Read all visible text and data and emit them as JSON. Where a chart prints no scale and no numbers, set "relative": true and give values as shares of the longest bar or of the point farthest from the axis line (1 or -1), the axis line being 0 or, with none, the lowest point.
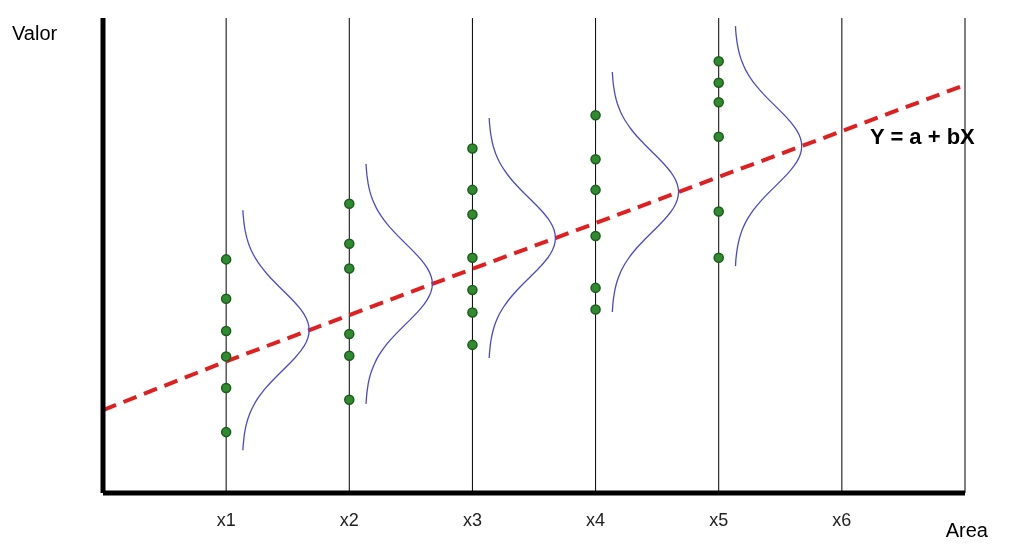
{
  "chart_data": {
    "type": "scatter",
    "relative": true,
    "xlabel": "Area",
    "ylabel": "Valor",
    "categories": [
      null,
      "x1",
      "x2",
      "x3",
      "x4",
      "x5",
      "x6",
      null
    ],
    "grid": "x",
    "legend": false,
    "series": [
      {
        "color": "#2e8b2e",
        "marker": "circle",
        "x": [
          "x1",
          "x1",
          "x1",
          "x1",
          "x1",
          "x1",
          "x2",
          "x2",
          "x2",
          "x2",
          "x2",
          "x2",
          "x3",
          "x3",
          "x3",
          "x3",
          "x3",
          "x3",
          "x3",
          "x4",
          "x4",
          "x4",
          "x4",
          "x4",
          "x4",
          "x5",
          "x5",
          "x5",
          "x5",
          "x5",
          "x5"
        ],
        "values": [
          0.141,
          0.375,
          0.541,
          0.45,
          0.316,
          0.243,
          0.67,
          0.577,
          0.318,
          0.52,
          0.368,
          0.216,
          0.47,
          0.645,
          0.545,
          0.418,
          0.343,
          0.798,
          0.702,
          0.773,
          0.875,
          0.595,
          0.475,
          0.425,
          0.702,
          1.0,
          0.95,
          0.905,
          0.825,
          0.652,
          0.545
        ]
      },
      {
        "type": "line",
        "color": "#e02020",
        "line_style": "dashed",
        "marker": "none",
        "values": [
          0.192,
          0.305,
          0.412,
          0.519,
          0.625,
          0.732,
          0.838,
          0.945
        ]
      }
    ],
    "annotations": [
      "Y = a + bX"
    ]
  }
}
